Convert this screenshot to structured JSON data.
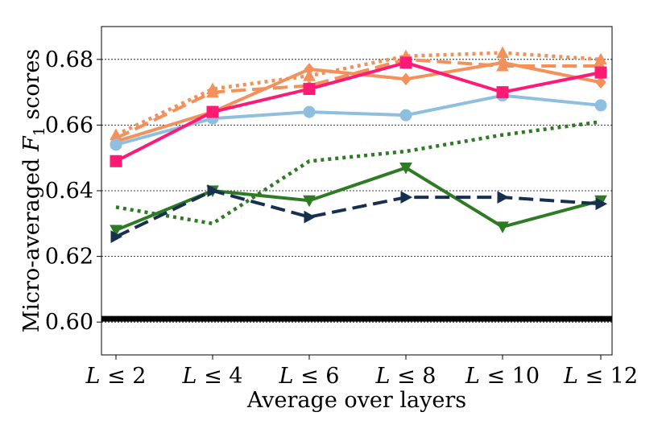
{
  "chart_data": {
    "type": "line",
    "title": "",
    "xlabel": "Average over layers",
    "ylabel": "Micro-averaged F1 scores",
    "ylabel_parts": {
      "pre": "Micro-averaged ",
      "var": "F",
      "sub": "1",
      "post": " scores"
    },
    "categories": [
      "L ≤ 2",
      "L ≤ 4",
      "L ≤ 6",
      "L ≤ 8",
      "L ≤ 10",
      "L ≤ 12"
    ],
    "yticks": [
      "0.60",
      "0.62",
      "0.64",
      "0.66",
      "0.68"
    ],
    "ytick_values": [
      0.6,
      0.62,
      0.64,
      0.66,
      0.68
    ],
    "ylim": [
      0.59,
      0.69
    ],
    "grid": "horizontal dashed",
    "baseline": {
      "value": 0.601,
      "color": "#000000"
    },
    "series": [
      {
        "name": "orange-dotted-triangle-up",
        "color": "#f4905a",
        "dash": "dotted",
        "marker": "triangle-up",
        "values": [
          0.657,
          0.671,
          0.675,
          0.681,
          0.682,
          0.68
        ]
      },
      {
        "name": "orange-dashed-triangle-up",
        "color": "#f4905a",
        "dash": "dashed",
        "marker": "triangle-up",
        "values": [
          0.656,
          0.67,
          0.672,
          0.68,
          0.678,
          0.678
        ]
      },
      {
        "name": "orange-solid-diamond",
        "color": "#f4905a",
        "dash": "solid",
        "marker": "diamond",
        "values": [
          0.655,
          0.664,
          0.677,
          0.674,
          0.679,
          0.673
        ]
      },
      {
        "name": "blue-solid-circle",
        "color": "#8fbfdf",
        "dash": "solid",
        "marker": "circle",
        "values": [
          0.654,
          0.662,
          0.664,
          0.663,
          0.669,
          0.666
        ]
      },
      {
        "name": "pink-solid-square",
        "color": "#ff1a75",
        "dash": "solid",
        "marker": "square",
        "values": [
          0.649,
          0.664,
          0.671,
          0.679,
          0.67,
          0.676
        ]
      },
      {
        "name": "green-dotted",
        "color": "#2e7a25",
        "dash": "dotted",
        "marker": "none",
        "values": [
          0.635,
          0.63,
          0.649,
          0.652,
          0.657,
          0.661
        ]
      },
      {
        "name": "green-solid-triangle-down",
        "color": "#2e7a25",
        "dash": "solid",
        "marker": "triangle-down",
        "values": [
          0.628,
          0.64,
          0.637,
          0.647,
          0.629,
          0.637
        ]
      },
      {
        "name": "navy-dashed-triangle-right",
        "color": "#17304f",
        "dash": "dashed",
        "marker": "triangle-right",
        "values": [
          0.626,
          0.64,
          0.632,
          0.638,
          0.638,
          0.636
        ]
      }
    ]
  }
}
